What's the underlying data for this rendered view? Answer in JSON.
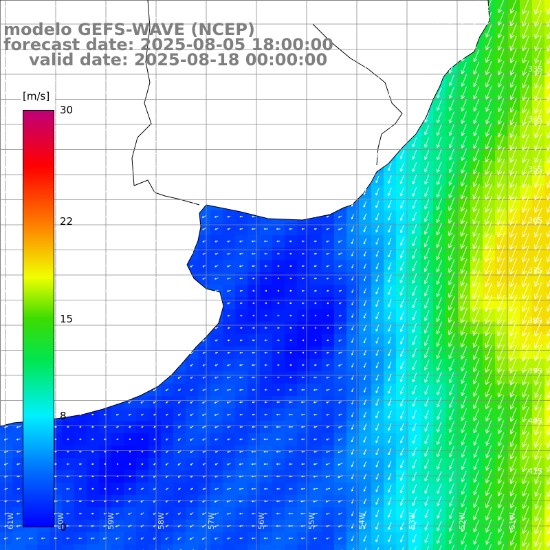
{
  "title": {
    "line1": "modelo GEFS-WAVE (NCEP)",
    "line2": "forecast date: 2025-08-05 18:00:00",
    "line3": "valid date: 2025-08-18 00:00:00"
  },
  "colorbar": {
    "units": "[m/s]",
    "ticks": [
      "30",
      "22",
      "15",
      "8",
      "0"
    ],
    "tick_values": [
      30,
      22,
      15,
      8,
      0
    ],
    "range": [
      0,
      30
    ]
  },
  "map": {
    "lat_labels": [
      "33S",
      "34S",
      "35S",
      "36S",
      "37S",
      "38S",
      "39S",
      "40S",
      "41S"
    ],
    "lon_labels": [
      "61W",
      "60W",
      "59W",
      "58W",
      "57W",
      "56W",
      "55W",
      "54W",
      "53W",
      "52W",
      "51W"
    ],
    "field": "wind speed",
    "vectors": "wind arrows"
  }
}
